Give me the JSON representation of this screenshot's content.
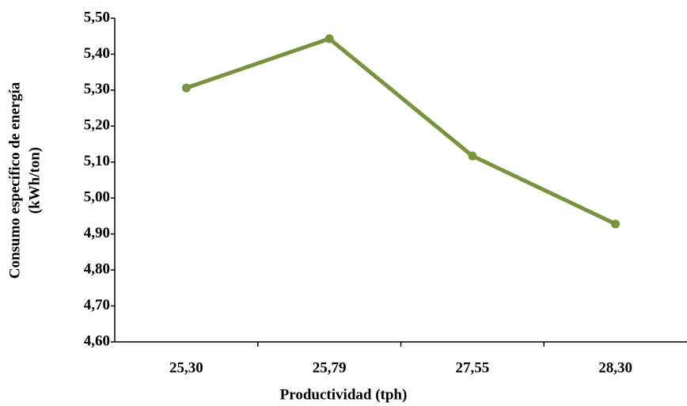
{
  "chart_data": {
    "type": "line",
    "xlabel": "Productividad (tph)",
    "ylabel": [
      "Consumo específico de energía",
      "(kWh/ton)"
    ],
    "categories": [
      "25,30",
      "25,79",
      "27,55",
      "28,30"
    ],
    "values": [
      5.306,
      5.443,
      5.117,
      4.928
    ],
    "color": "#77933c",
    "ylim": [
      4.6,
      5.5
    ],
    "yticks": [
      {
        "value": 4.6,
        "label": "4,60"
      },
      {
        "value": 4.7,
        "label": "4,70"
      },
      {
        "value": 4.8,
        "label": "4,80"
      },
      {
        "value": 4.9,
        "label": "4,90"
      },
      {
        "value": 5.0,
        "label": "5,00"
      },
      {
        "value": 5.1,
        "label": "5,10"
      },
      {
        "value": 5.2,
        "label": "5,20"
      },
      {
        "value": 5.3,
        "label": "5,30"
      },
      {
        "value": 5.4,
        "label": "5,40"
      },
      {
        "value": 5.5,
        "label": "5,50"
      }
    ],
    "grid": false
  }
}
